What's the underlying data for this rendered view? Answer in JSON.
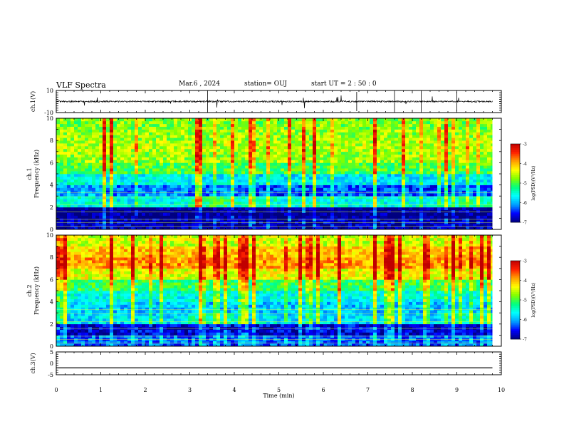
{
  "header": {
    "title": "VLF Spectra",
    "date": "Mar.6 , 2024",
    "station": "station= OUJ",
    "start": "start UT =  2 : 50 : 0"
  },
  "colorbar": {
    "label": "log(PSD)(V²/Hz)",
    "ticks": [
      "-3",
      "-4",
      "-5",
      "-6",
      "-7"
    ],
    "colors": [
      "#000080",
      "#0000ff",
      "#00a0ff",
      "#00ffff",
      "#00ff80",
      "#80ff00",
      "#ffff00",
      "#ffa000",
      "#ff2000",
      "#c00000",
      "#ffffff"
    ]
  },
  "chart_data": [
    {
      "type": "line",
      "panel": "ch1-waveform",
      "ylabel": "ch.1(V)",
      "ylim": [
        -10,
        10
      ],
      "y_ticks": [
        "10",
        "-10"
      ],
      "xlim": [
        0,
        10
      ],
      "x": [
        0,
        1,
        2,
        3,
        4,
        5,
        6,
        7,
        8,
        9,
        9.8
      ],
      "y": [
        0,
        0,
        0,
        0,
        0,
        0,
        0,
        0,
        0,
        0,
        0
      ]
    },
    {
      "type": "heatmap",
      "panel": "ch1-spectrogram",
      "ylabel": "ch.1\nFrequency (kHz)",
      "ylim": [
        0,
        10
      ],
      "y_ticks": [
        "10",
        "8",
        "6",
        "4",
        "2",
        "0"
      ],
      "xlim": [
        0,
        10
      ],
      "zlim": [
        -7,
        -3
      ],
      "freq_khz": [
        0.5,
        1.5,
        2.5,
        3.5,
        4.5,
        5.5,
        6.5,
        7.5,
        8.5,
        9.5
      ],
      "time_min": [
        0,
        1,
        2,
        3,
        4,
        5,
        6,
        7,
        8,
        9
      ],
      "z": [
        [
          -6.8,
          -6.8,
          -6.8,
          -6.8,
          -6.8,
          -6.8,
          -6.8,
          -6.8,
          -6.8,
          -6.8
        ],
        [
          -7.0,
          -7.0,
          -7.0,
          -7.0,
          -7.0,
          -7.0,
          -7.0,
          -7.0,
          -7.0,
          -7.0
        ],
        [
          -5.6,
          -5.7,
          -5.7,
          -5.2,
          -5.5,
          -5.6,
          -5.6,
          -5.6,
          -5.6,
          -5.4
        ],
        [
          -6.0,
          -6.2,
          -6.1,
          -6.2,
          -6.4,
          -6.4,
          -6.3,
          -6.4,
          -6.4,
          -6.3
        ],
        [
          -5.6,
          -5.7,
          -5.6,
          -5.7,
          -5.8,
          -5.8,
          -5.7,
          -5.8,
          -5.8,
          -5.7
        ],
        [
          -5.0,
          -5.0,
          -5.0,
          -5.0,
          -5.0,
          -5.0,
          -5.0,
          -5.0,
          -5.0,
          -5.0
        ],
        [
          -4.7,
          -4.7,
          -4.7,
          -4.7,
          -4.7,
          -4.7,
          -4.7,
          -4.7,
          -4.7,
          -4.7
        ],
        [
          -4.6,
          -4.6,
          -4.6,
          -4.6,
          -4.6,
          -4.6,
          -4.6,
          -4.6,
          -4.6,
          -4.6
        ],
        [
          -4.7,
          -4.7,
          -4.7,
          -4.7,
          -4.7,
          -4.7,
          -4.7,
          -4.7,
          -4.7,
          -4.7
        ],
        [
          -4.8,
          -4.8,
          -4.8,
          -4.8,
          -4.8,
          -4.8,
          -4.8,
          -4.8,
          -4.8,
          -4.8
        ]
      ]
    },
    {
      "type": "heatmap",
      "panel": "ch2-spectrogram",
      "ylabel": "ch.2\nFrequency (kHz)",
      "ylim": [
        0,
        10
      ],
      "y_ticks": [
        "10",
        "8",
        "6",
        "4",
        "2",
        "0"
      ],
      "xlim": [
        0,
        10
      ],
      "zlim": [
        -7,
        -3
      ],
      "freq_khz": [
        0.5,
        1.5,
        2.5,
        3.5,
        4.5,
        5.5,
        6.5,
        7.5,
        8.5,
        9.5
      ],
      "time_min": [
        0,
        1,
        2,
        3,
        4,
        5,
        6,
        7,
        8,
        9
      ],
      "z": [
        [
          -6.3,
          -6.3,
          -6.3,
          -6.3,
          -6.3,
          -6.3,
          -6.3,
          -6.3,
          -6.3,
          -6.3
        ],
        [
          -6.7,
          -6.7,
          -6.7,
          -6.7,
          -6.7,
          -6.7,
          -6.7,
          -6.7,
          -6.7,
          -6.7
        ],
        [
          -5.8,
          -5.8,
          -5.8,
          -5.4,
          -5.7,
          -5.8,
          -5.8,
          -5.8,
          -5.8,
          -5.5
        ],
        [
          -5.8,
          -5.9,
          -5.9,
          -5.9,
          -5.9,
          -5.9,
          -5.9,
          -5.9,
          -5.9,
          -5.9
        ],
        [
          -5.6,
          -5.6,
          -5.6,
          -5.6,
          -5.6,
          -5.6,
          -5.6,
          -5.6,
          -5.6,
          -5.6
        ],
        [
          -5.1,
          -5.1,
          -5.1,
          -5.1,
          -5.1,
          -5.1,
          -5.1,
          -5.1,
          -5.1,
          -5.1
        ],
        [
          -4.4,
          -4.4,
          -4.4,
          -4.4,
          -4.4,
          -4.4,
          -4.4,
          -4.4,
          -4.4,
          -4.4
        ],
        [
          -3.9,
          -3.9,
          -3.9,
          -3.9,
          -3.9,
          -3.9,
          -3.9,
          -3.9,
          -3.9,
          -3.9
        ],
        [
          -4.1,
          -4.1,
          -4.1,
          -4.1,
          -4.1,
          -4.1,
          -4.1,
          -4.1,
          -4.1,
          -4.1
        ],
        [
          -4.5,
          -4.5,
          -4.5,
          -4.5,
          -4.5,
          -4.5,
          -4.5,
          -4.5,
          -4.5,
          -4.5
        ]
      ]
    },
    {
      "type": "line",
      "panel": "ch3-waveform",
      "ylabel": "ch.3(V)",
      "ylim": [
        -5,
        5
      ],
      "y_ticks": [
        "5",
        "0",
        "-5"
      ],
      "xlim": [
        0,
        10
      ],
      "xlabel": "Time (min)",
      "x_ticks": [
        "0",
        "1",
        "2",
        "3",
        "4",
        "5",
        "6",
        "7",
        "8",
        "9",
        "10"
      ],
      "x": [
        0,
        9.8
      ],
      "y": [
        -2,
        -2
      ]
    }
  ]
}
